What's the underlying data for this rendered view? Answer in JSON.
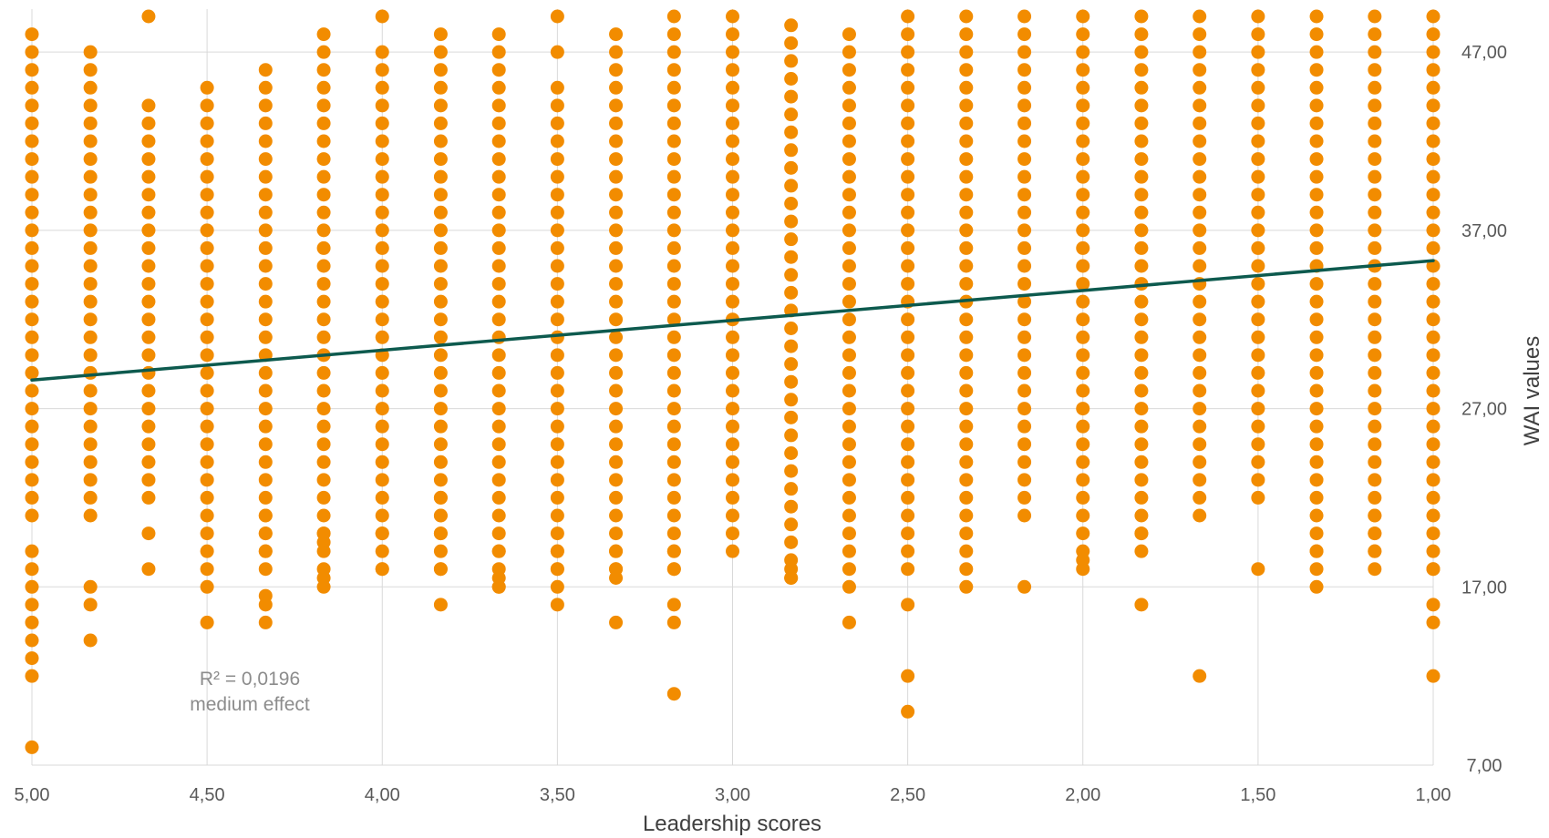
{
  "chart_data": {
    "type": "scatter",
    "title": "",
    "xlabel": "Leadership scores",
    "ylabel": "WAI values",
    "x_axis": {
      "min": 1.0,
      "max": 5.0,
      "reversed": true,
      "tick_step": 0.5,
      "tick_labels": [
        "5,00",
        "4,50",
        "4,00",
        "3,50",
        "3,00",
        "2,50",
        "2,00",
        "1,50",
        "1,00"
      ]
    },
    "y_axis": {
      "min": 7.0,
      "max": 49.0,
      "position": "right",
      "tick_labels": [
        "7,00",
        "17,00",
        "27,00",
        "37,00",
        "47,00"
      ],
      "tick_values": [
        7,
        17,
        27,
        37,
        47
      ]
    },
    "grid": true,
    "colors": {
      "points": "#f28c00",
      "trendline": "#0d5a4e",
      "grid": "#d9d9d9",
      "tick_text": "#595959",
      "annotation": "#8c8c8c"
    },
    "annotation": [
      "R² = 0,0196",
      "medium effect"
    ],
    "trendline": {
      "x": [
        5.0,
        1.0
      ],
      "y": [
        28.6,
        35.3
      ]
    },
    "series": [
      {
        "x_values": [
          5.0,
          4.833,
          4.667,
          4.5,
          4.333,
          4.167,
          4.0,
          3.833,
          3.667,
          3.5,
          3.333,
          3.167,
          3.0,
          2.833,
          2.667,
          2.5,
          2.333,
          2.167,
          2.0,
          1.833,
          1.667,
          1.5,
          1.333,
          1.167,
          1.0
        ],
        "y_ranges": [
          [
            [
              21,
              48
            ]
          ],
          [
            [
              21,
              31
            ],
            [
              32,
              47
            ]
          ],
          [
            [
              23,
              26
            ],
            [
              27,
              44
            ]
          ],
          [
            [
              18,
              43
            ],
            [
              44,
              45
            ]
          ],
          [
            [
              18,
              23
            ],
            [
              24,
              46
            ]
          ],
          [
            [
              18,
              48
            ]
          ],
          [
            [
              18,
              24
            ],
            [
              25,
              47
            ]
          ],
          [
            [
              18,
              24
            ],
            [
              25,
              48
            ]
          ],
          [
            [
              17,
              48
            ]
          ],
          [
            [
              18,
              45
            ]
          ],
          [
            [
              18,
              48
            ]
          ],
          [
            [
              18,
              21
            ],
            [
              22,
              49
            ]
          ],
          [
            [
              20,
              49
            ]
          ],
          [
            [
              17.5,
              49
            ]
          ],
          [
            [
              18,
              48
            ]
          ],
          [
            [
              18,
              49
            ]
          ],
          [
            [
              18,
              49
            ]
          ],
          [
            [
              21,
              49
            ]
          ],
          [
            [
              18,
              49
            ]
          ],
          [
            [
              19,
              49
            ]
          ],
          [
            [
              21,
              49
            ]
          ],
          [
            [
              22,
              49
            ]
          ],
          [
            [
              18,
              49
            ]
          ],
          [
            [
              18,
              49
            ]
          ],
          [
            [
              18,
              49
            ]
          ]
        ],
        "points": [
          {
            "x": 5.0,
            "y": 19
          },
          {
            "x": 5.0,
            "y": 18
          },
          {
            "x": 5.0,
            "y": 17
          },
          {
            "x": 5.0,
            "y": 16
          },
          {
            "x": 5.0,
            "y": 15
          },
          {
            "x": 5.0,
            "y": 14
          },
          {
            "x": 5.0,
            "y": 13
          },
          {
            "x": 5.0,
            "y": 12
          },
          {
            "x": 5.0,
            "y": 8
          },
          {
            "x": 4.833,
            "y": 17
          },
          {
            "x": 4.833,
            "y": 16
          },
          {
            "x": 4.833,
            "y": 14
          },
          {
            "x": 4.667,
            "y": 22
          },
          {
            "x": 4.667,
            "y": 20
          },
          {
            "x": 4.667,
            "y": 18
          },
          {
            "x": 4.667,
            "y": 49
          },
          {
            "x": 4.5,
            "y": 17
          },
          {
            "x": 4.5,
            "y": 15
          },
          {
            "x": 4.333,
            "y": 21
          },
          {
            "x": 4.333,
            "y": 20
          },
          {
            "x": 4.333,
            "y": 19
          },
          {
            "x": 4.333,
            "y": 16.5
          },
          {
            "x": 4.333,
            "y": 16
          },
          {
            "x": 4.333,
            "y": 15
          },
          {
            "x": 4.167,
            "y": 17
          },
          {
            "x": 4.167,
            "y": 17.5
          },
          {
            "x": 4.167,
            "y": 19.5
          },
          {
            "x": 4.167,
            "y": 20
          },
          {
            "x": 4.0,
            "y": 49
          },
          {
            "x": 4.0,
            "y": 20
          },
          {
            "x": 4.0,
            "y": 18
          },
          {
            "x": 3.833,
            "y": 16
          },
          {
            "x": 3.833,
            "y": 18
          },
          {
            "x": 3.833,
            "y": 20
          },
          {
            "x": 3.833,
            "y": 21
          },
          {
            "x": 3.833,
            "y": 22
          },
          {
            "x": 3.667,
            "y": 19
          },
          {
            "x": 3.667,
            "y": 17.5
          },
          {
            "x": 3.667,
            "y": 17
          },
          {
            "x": 3.5,
            "y": 49
          },
          {
            "x": 3.5,
            "y": 47
          },
          {
            "x": 3.5,
            "y": 19
          },
          {
            "x": 3.5,
            "y": 18
          },
          {
            "x": 3.5,
            "y": 17
          },
          {
            "x": 3.5,
            "y": 16
          },
          {
            "x": 3.333,
            "y": 19
          },
          {
            "x": 3.333,
            "y": 18
          },
          {
            "x": 3.333,
            "y": 17.5
          },
          {
            "x": 3.333,
            "y": 15
          },
          {
            "x": 3.167,
            "y": 19
          },
          {
            "x": 3.167,
            "y": 18
          },
          {
            "x": 3.167,
            "y": 16
          },
          {
            "x": 3.167,
            "y": 15
          },
          {
            "x": 3.167,
            "y": 11
          },
          {
            "x": 3.0,
            "y": 19
          },
          {
            "x": 2.833,
            "y": 17.5
          },
          {
            "x": 2.833,
            "y": 18
          },
          {
            "x": 2.667,
            "y": 17
          },
          {
            "x": 2.667,
            "y": 15
          },
          {
            "x": 2.5,
            "y": 16
          },
          {
            "x": 2.5,
            "y": 12
          },
          {
            "x": 2.5,
            "y": 10
          },
          {
            "x": 2.333,
            "y": 17
          },
          {
            "x": 2.167,
            "y": 17
          },
          {
            "x": 2.0,
            "y": 18.5
          },
          {
            "x": 1.833,
            "y": 20
          },
          {
            "x": 1.833,
            "y": 16
          },
          {
            "x": 1.667,
            "y": 12
          },
          {
            "x": 1.5,
            "y": 18
          },
          {
            "x": 1.333,
            "y": 17
          },
          {
            "x": 1.333,
            "y": 19
          },
          {
            "x": 1.167,
            "y": 19
          },
          {
            "x": 1.167,
            "y": 20
          },
          {
            "x": 1.167,
            "y": 21
          },
          {
            "x": 1.0,
            "y": 18
          },
          {
            "x": 1.0,
            "y": 16
          },
          {
            "x": 1.0,
            "y": 15
          },
          {
            "x": 1.0,
            "y": 12
          }
        ]
      }
    ]
  }
}
